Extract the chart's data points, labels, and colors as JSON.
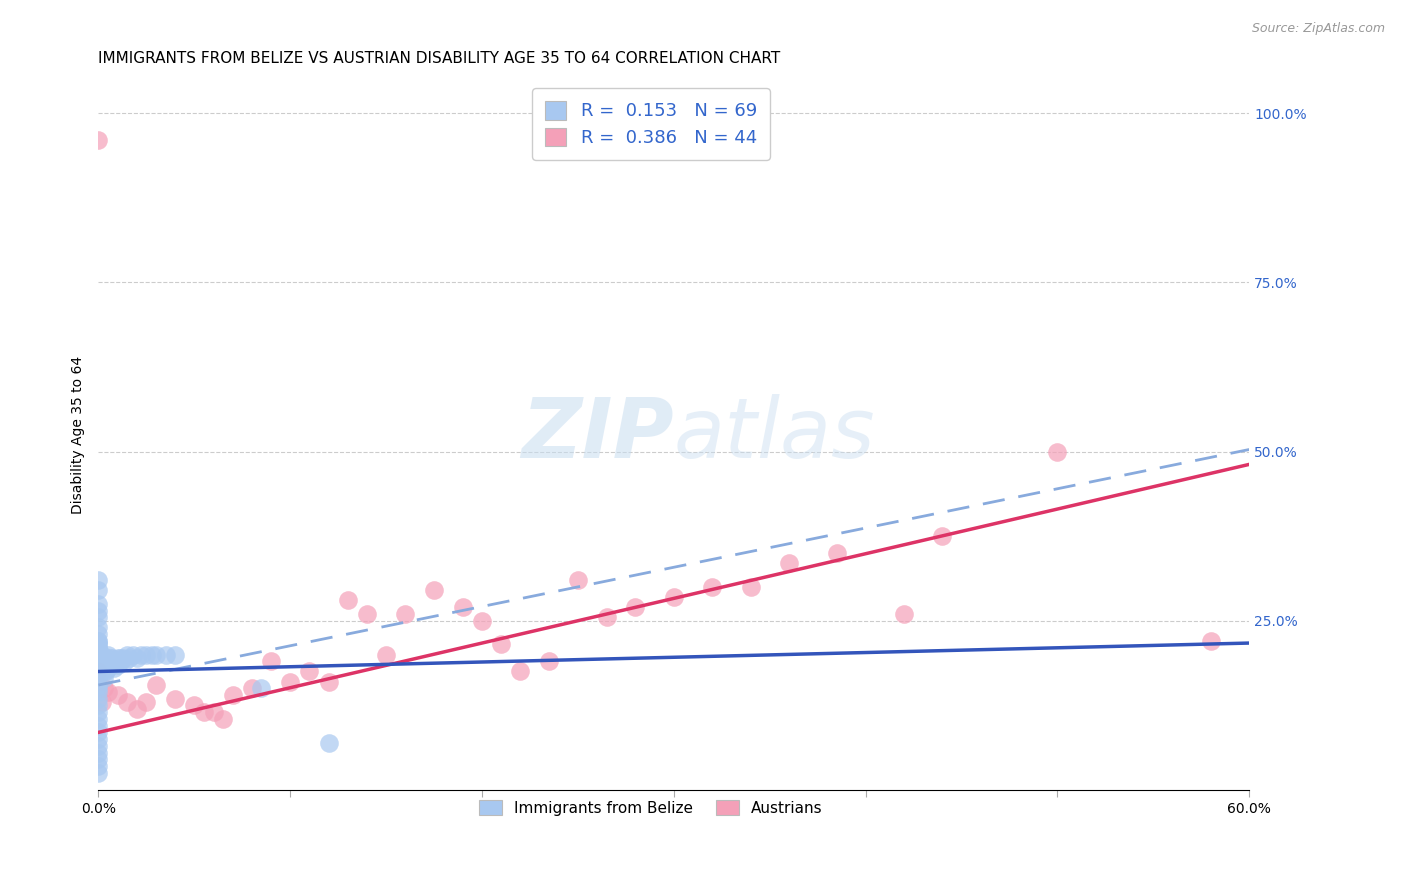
{
  "title": "IMMIGRANTS FROM BELIZE VS AUSTRIAN DISABILITY AGE 35 TO 64 CORRELATION CHART",
  "source": "Source: ZipAtlas.com",
  "ylabel": "Disability Age 35 to 64",
  "xlim": [
    0.0,
    0.6
  ],
  "ylim": [
    0.0,
    1.05
  ],
  "xticks": [
    0.0,
    0.1,
    0.2,
    0.3,
    0.4,
    0.5,
    0.6
  ],
  "xticklabels": [
    "0.0%",
    "",
    "",
    "",
    "",
    "",
    "60.0%"
  ],
  "yticks": [
    0.0,
    0.25,
    0.5,
    0.75,
    1.0
  ],
  "yticklabels_right": [
    "",
    "25.0%",
    "50.0%",
    "75.0%",
    "100.0%"
  ],
  "r_blue": 0.153,
  "n_blue": 69,
  "r_pink": 0.386,
  "n_pink": 44,
  "blue_color": "#a8c8f0",
  "pink_color": "#f4a0b8",
  "blue_line_color": "#3355bb",
  "pink_line_color": "#dd3366",
  "dash_line_color": "#88aadd",
  "legend_r_color": "#3366cc",
  "grid_color": "#cccccc",
  "background_color": "#ffffff",
  "title_fontsize": 11,
  "axis_label_fontsize": 10,
  "tick_fontsize": 10,
  "blue_scatter_x": [
    0.0,
    0.0,
    0.0,
    0.0,
    0.0,
    0.0,
    0.0,
    0.0,
    0.0,
    0.0,
    0.0,
    0.0,
    0.0,
    0.0,
    0.0,
    0.0,
    0.0,
    0.0,
    0.0,
    0.0,
    0.002,
    0.002,
    0.003,
    0.003,
    0.003,
    0.004,
    0.004,
    0.004,
    0.005,
    0.005,
    0.005,
    0.006,
    0.006,
    0.007,
    0.007,
    0.008,
    0.008,
    0.009,
    0.01,
    0.01,
    0.011,
    0.012,
    0.013,
    0.014,
    0.015,
    0.016,
    0.018,
    0.02,
    0.022,
    0.025,
    0.028,
    0.03,
    0.035,
    0.04,
    0.0,
    0.0,
    0.0,
    0.0,
    0.0,
    0.0,
    0.0,
    0.0,
    0.0,
    0.0,
    0.0,
    0.0,
    0.0,
    0.085,
    0.12
  ],
  "blue_scatter_y": [
    0.175,
    0.185,
    0.195,
    0.205,
    0.215,
    0.165,
    0.155,
    0.145,
    0.135,
    0.125,
    0.115,
    0.105,
    0.095,
    0.085,
    0.075,
    0.065,
    0.055,
    0.045,
    0.035,
    0.025,
    0.19,
    0.2,
    0.185,
    0.175,
    0.165,
    0.195,
    0.185,
    0.175,
    0.2,
    0.19,
    0.18,
    0.195,
    0.185,
    0.195,
    0.185,
    0.19,
    0.18,
    0.19,
    0.195,
    0.185,
    0.195,
    0.19,
    0.195,
    0.19,
    0.2,
    0.195,
    0.2,
    0.195,
    0.2,
    0.2,
    0.2,
    0.2,
    0.2,
    0.2,
    0.255,
    0.265,
    0.24,
    0.23,
    0.22,
    0.275,
    0.295,
    0.31,
    0.22,
    0.21,
    0.215,
    0.21,
    0.15,
    0.15,
    0.07
  ],
  "pink_scatter_x": [
    0.0,
    0.0,
    0.0,
    0.002,
    0.003,
    0.005,
    0.01,
    0.015,
    0.02,
    0.025,
    0.03,
    0.04,
    0.05,
    0.055,
    0.06,
    0.065,
    0.07,
    0.08,
    0.09,
    0.1,
    0.11,
    0.12,
    0.13,
    0.14,
    0.15,
    0.16,
    0.175,
    0.19,
    0.2,
    0.21,
    0.22,
    0.235,
    0.25,
    0.265,
    0.28,
    0.3,
    0.32,
    0.34,
    0.36,
    0.385,
    0.42,
    0.44,
    0.5,
    0.58
  ],
  "pink_scatter_y": [
    0.96,
    0.175,
    0.155,
    0.13,
    0.15,
    0.145,
    0.14,
    0.13,
    0.12,
    0.13,
    0.155,
    0.135,
    0.125,
    0.115,
    0.115,
    0.105,
    0.14,
    0.15,
    0.19,
    0.16,
    0.175,
    0.16,
    0.28,
    0.26,
    0.2,
    0.26,
    0.295,
    0.27,
    0.25,
    0.215,
    0.175,
    0.19,
    0.31,
    0.255,
    0.27,
    0.285,
    0.3,
    0.3,
    0.335,
    0.35,
    0.26,
    0.375,
    0.5,
    0.22
  ]
}
